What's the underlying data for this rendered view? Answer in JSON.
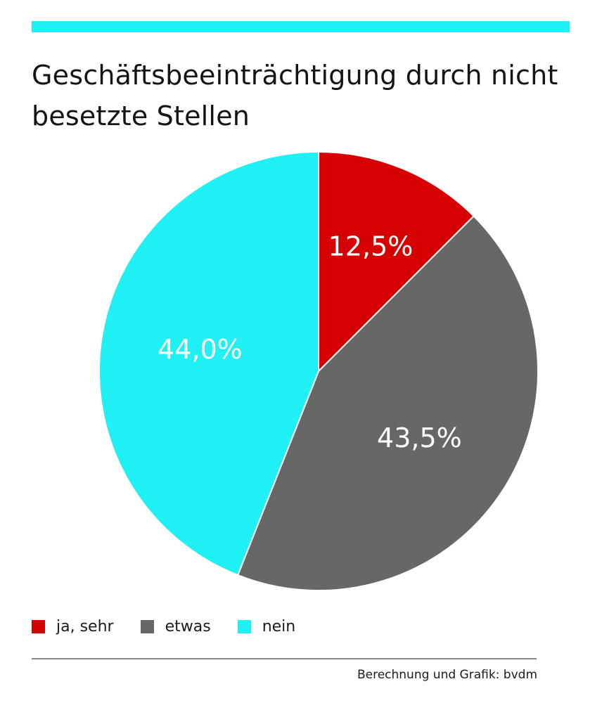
{
  "title": "Geschäftsbeeinträchtigung durch nicht besetzte Stellen",
  "source": "Berechnung und Grafik: bvdm",
  "accent_color": "#1ff0f3",
  "chart_data": {
    "type": "pie",
    "title": "Geschäftsbeeinträchtigung durch nicht besetzte Stellen",
    "slices": [
      {
        "label": "ja, sehr",
        "value": 12.5,
        "value_label": "12,5%",
        "color": "#d60000"
      },
      {
        "label": "etwas",
        "value": 43.5,
        "value_label": "43,5%",
        "color": "#676767"
      },
      {
        "label": "nein",
        "value": 44.0,
        "value_label": "44,0%",
        "color": "#1ff0f3"
      }
    ],
    "start": "12 o'clock",
    "direction": "clockwise",
    "legend_position": "bottom-left"
  }
}
